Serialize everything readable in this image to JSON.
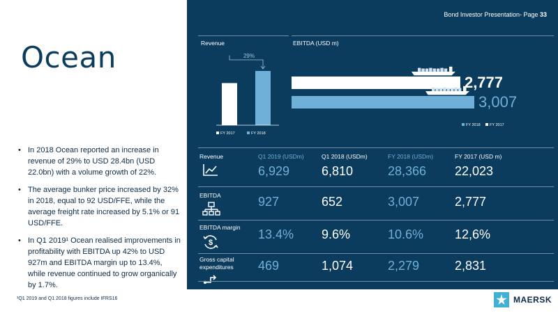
{
  "page": {
    "header": "Bond Investor Presentation- Page ",
    "page_number": "33",
    "title": "Ocean"
  },
  "bullets": [
    "In 2018 Ocean reported an increase in revenue of 29% to USD 28.4bn (USD 22.0bn) with a volume growth of 22%.",
    "The average bunker price increased by 32% in 2018, equal to 92 USD/FFE, while the average freight rate increased by 5.1% or 91 USD/FFE.",
    "In Q1 2019¹ Ocean realised improvements in profitability with EBITDA up 42% to USD 927m and EBITDA margin up to 13.4%, while revenue continued to grow organically by 1.7%."
  ],
  "footnote": "¹Q1 2019 and Q1 2018 figures include IFRS16",
  "colors": {
    "navy": "#0b3c5d",
    "light_blue": "#6fb0d8",
    "white": "#ffffff",
    "logo_blue": "#42b0d5"
  },
  "icons": [
    "line-chart-icon",
    "org-chart-icon",
    "dollar-cycle-icon",
    "capex-icon",
    "container-ship-icon",
    "maersk-star-icon"
  ],
  "chart_data": [
    {
      "type": "bar",
      "title": "Revenue",
      "categories": [
        "FY 2017",
        "FY 2018"
      ],
      "values": [
        22023,
        28366
      ],
      "annotation": "29%",
      "legend": [
        "FY 2017",
        "FY 2018"
      ],
      "legend_position": "bottom",
      "colors": [
        "#ffffff",
        "#6fb0d8"
      ]
    },
    {
      "type": "bar",
      "orientation": "horizontal",
      "title": "EBITDA (USD m)",
      "categories": [
        "FY 2017",
        "FY 2018"
      ],
      "values": [
        2777,
        3007
      ],
      "value_labels": [
        "2,777",
        "3,007"
      ],
      "legend": [
        "FY 2018",
        "FY 2017"
      ],
      "legend_position": "bottom-right",
      "colors": [
        "#ffffff",
        "#6fb0d8"
      ]
    }
  ],
  "table": {
    "section_label": "Revenue",
    "columns": [
      "Q1 2019 (USDm)",
      "Q1 2018 (USDm)",
      "FY 2018 (USDm)",
      "FY 2017 (USD m)"
    ],
    "rows": [
      {
        "label": "Revenue",
        "values": [
          "6,929",
          "6,810",
          "28,366",
          "22,023"
        ]
      },
      {
        "label": "EBITDA",
        "values": [
          "927",
          "652",
          "3,007",
          "2,777"
        ]
      },
      {
        "label": "EBITDA margin",
        "values": [
          "13.4%",
          "9.6%",
          "10.6%",
          "12,6%"
        ]
      },
      {
        "label": "Gross capital expenditures",
        "values": [
          "469",
          "1,074",
          "2,279",
          "2,831"
        ]
      }
    ]
  },
  "logo": {
    "text": "MAERSK"
  }
}
